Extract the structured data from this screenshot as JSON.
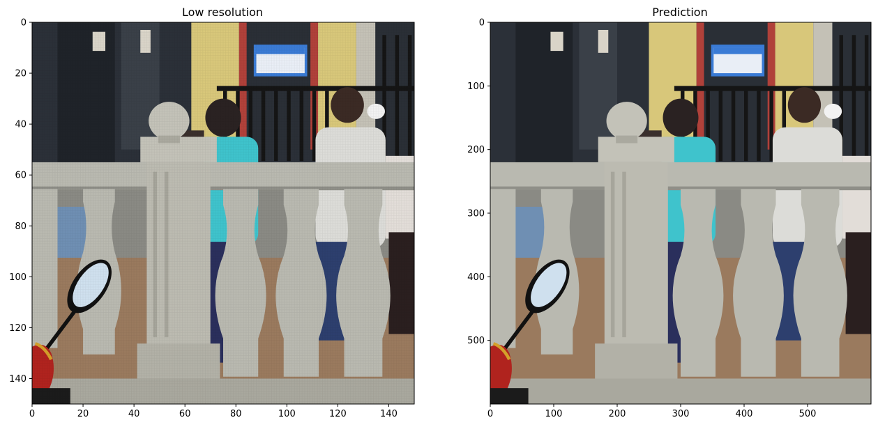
{
  "panels": [
    {
      "id": "left",
      "title": "Low resolution",
      "x_range": [
        0,
        150
      ],
      "y_range": [
        0,
        150
      ],
      "x_ticks": [
        0,
        20,
        40,
        60,
        80,
        100,
        120,
        140
      ],
      "y_ticks": [
        0,
        20,
        40,
        60,
        80,
        100,
        120,
        140
      ],
      "pixelated": true
    },
    {
      "id": "right",
      "title": "Prediction",
      "x_range": [
        0,
        600
      ],
      "y_range": [
        0,
        600
      ],
      "x_ticks": [
        0,
        100,
        200,
        300,
        400,
        500
      ],
      "y_ticks": [
        0,
        100,
        200,
        300,
        400,
        500
      ],
      "pixelated": false
    }
  ],
  "scene": {
    "description_colors": {
      "building_dark": "#2b3038",
      "wall_yellow": "#d8c77a",
      "sign_blue": "#3a7bd5",
      "balustrade_stone": "#b9b9b0",
      "shirt_cyan": "#3fc3cc",
      "shirt_white": "#dcdcd8",
      "trousers_navy": "#2a2f5c",
      "ground": "#9a7a5e",
      "mirror_glass": "#cfe0ee"
    }
  }
}
